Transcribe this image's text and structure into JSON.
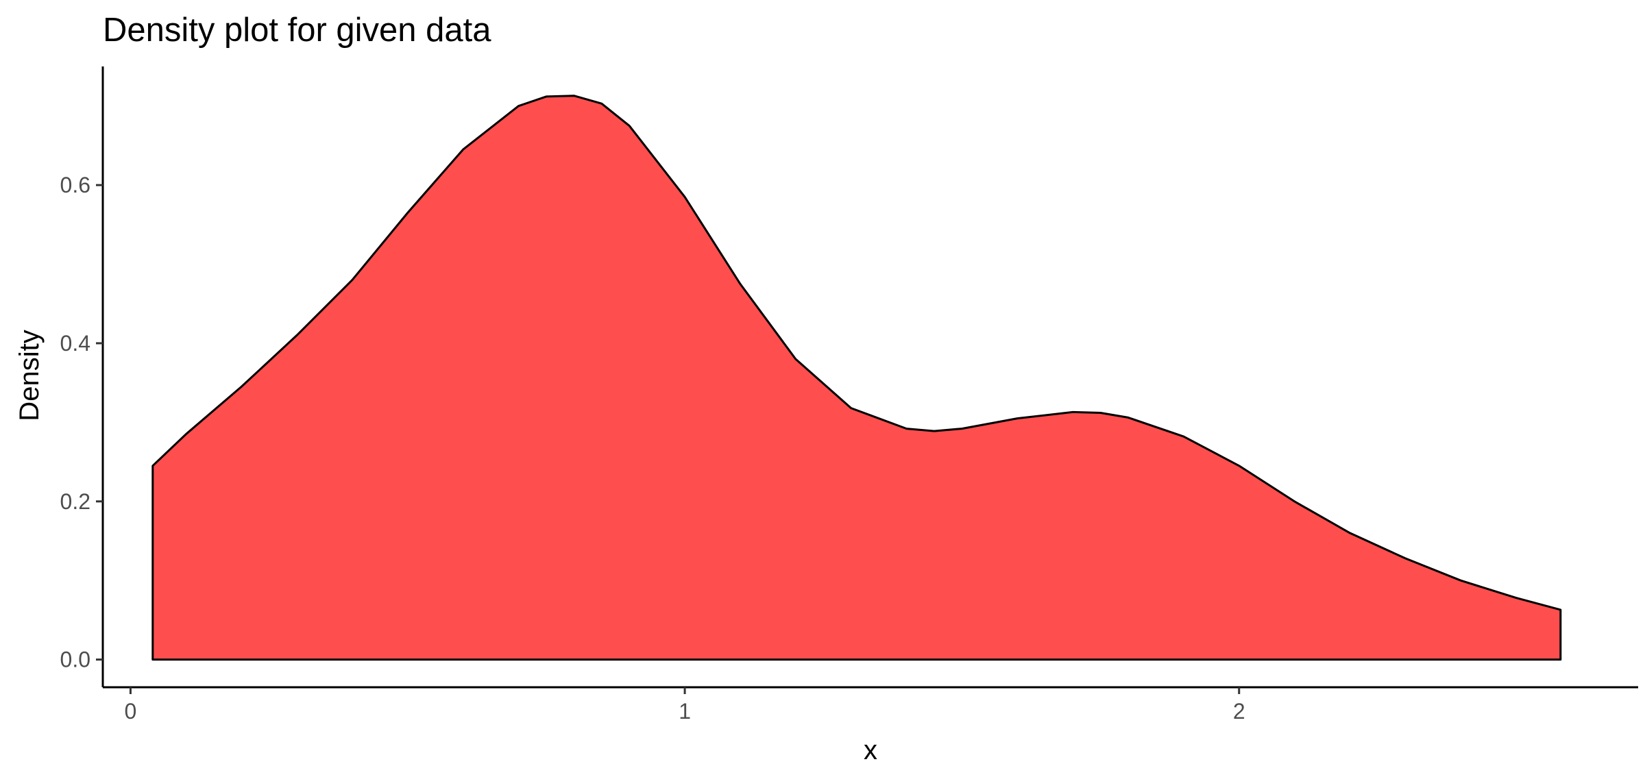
{
  "chart_data": {
    "type": "area",
    "title": "Density plot for given data",
    "xlabel": "x",
    "ylabel": "Density",
    "xlim": [
      -0.05,
      2.72
    ],
    "ylim": [
      -0.035,
      0.75
    ],
    "x_ticks": [
      {
        "value": 0,
        "label": "0"
      },
      {
        "value": 1,
        "label": "1"
      },
      {
        "value": 2,
        "label": "2"
      }
    ],
    "y_ticks": [
      {
        "value": 0.0,
        "label": "0.0"
      },
      {
        "value": 0.2,
        "label": "0.2"
      },
      {
        "value": 0.4,
        "label": "0.4"
      },
      {
        "value": 0.6,
        "label": "0.6"
      }
    ],
    "grid": false,
    "legend": "none",
    "fill_color": "#ff4e4e",
    "line_color": "#000000",
    "series": [
      {
        "x": [
          0.04,
          0.1,
          0.2,
          0.3,
          0.4,
          0.5,
          0.6,
          0.7,
          0.75,
          0.8,
          0.85,
          0.9,
          1.0,
          1.1,
          1.2,
          1.3,
          1.4,
          1.45,
          1.5,
          1.6,
          1.7,
          1.75,
          1.8,
          1.9,
          2.0,
          2.1,
          2.2,
          2.3,
          2.4,
          2.5,
          2.58
        ],
        "y": [
          0.245,
          0.285,
          0.345,
          0.41,
          0.48,
          0.565,
          0.645,
          0.7,
          0.712,
          0.713,
          0.703,
          0.675,
          0.585,
          0.475,
          0.38,
          0.318,
          0.292,
          0.289,
          0.292,
          0.305,
          0.313,
          0.312,
          0.306,
          0.282,
          0.245,
          0.2,
          0.16,
          0.128,
          0.1,
          0.078,
          0.063
        ]
      }
    ]
  }
}
